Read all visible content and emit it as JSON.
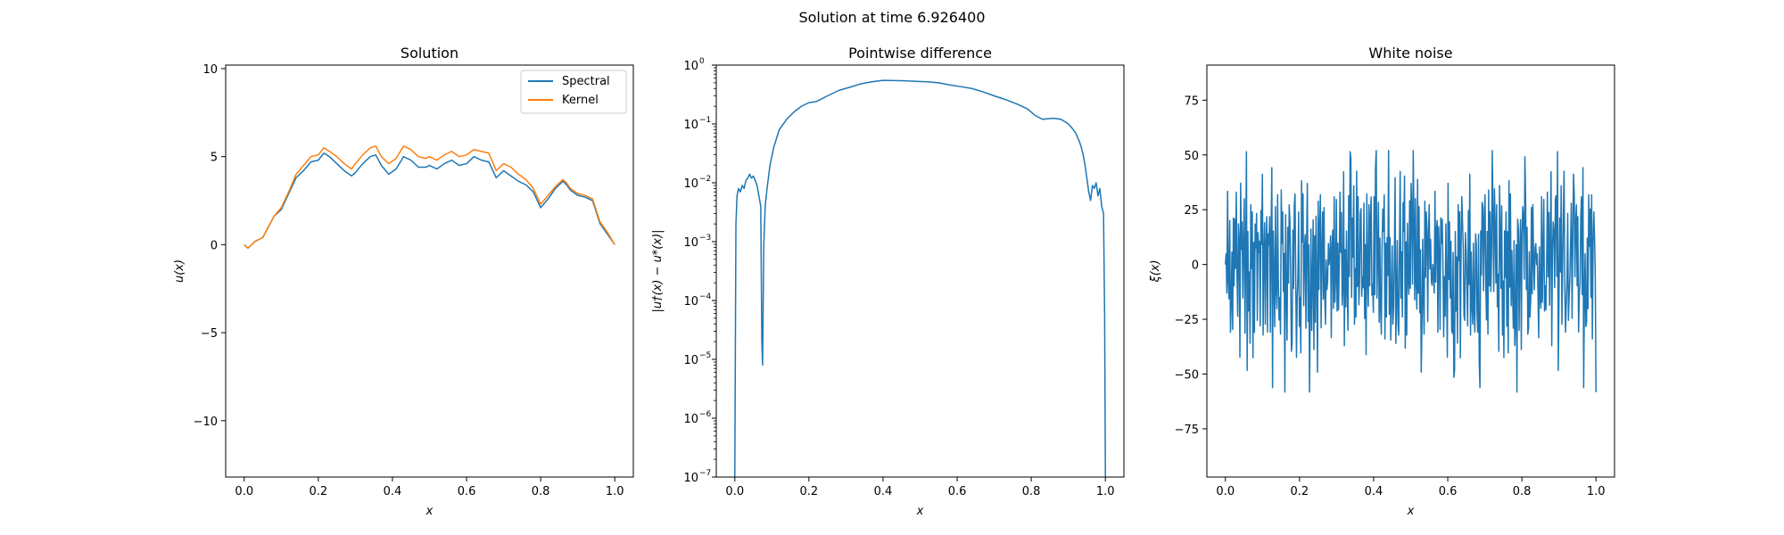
{
  "figure": {
    "suptitle": "Solution at time 6.926400"
  },
  "chart_data": [
    {
      "type": "line",
      "title": "Solution",
      "xlabel": "x",
      "ylabel": "u(x)",
      "xlim": [
        -0.05,
        1.05
      ],
      "ylim": [
        -13.2,
        10.2
      ],
      "x_ticks": [
        0.0,
        0.2,
        0.4,
        0.6,
        0.8,
        1.0
      ],
      "x_tick_labels": [
        "0.0",
        "0.2",
        "0.4",
        "0.6",
        "0.8",
        "1.0"
      ],
      "y_ticks": [
        10,
        5,
        0,
        -5,
        -10
      ],
      "y_tick_labels": [
        "10",
        "5",
        "0",
        "−5",
        "−10"
      ],
      "legend": {
        "placement": "top-right",
        "entries": [
          "Spectral",
          "Kernel"
        ]
      },
      "series": [
        {
          "name": "Spectral",
          "color": "#1f77b4",
          "x": [
            0.0,
            0.01,
            0.02,
            0.03,
            0.05,
            0.06,
            0.08,
            0.1,
            0.12,
            0.14,
            0.16,
            0.18,
            0.2,
            0.215,
            0.23,
            0.25,
            0.27,
            0.29,
            0.3,
            0.32,
            0.34,
            0.355,
            0.37,
            0.39,
            0.41,
            0.43,
            0.45,
            0.47,
            0.49,
            0.5,
            0.52,
            0.54,
            0.56,
            0.58,
            0.6,
            0.62,
            0.64,
            0.66,
            0.68,
            0.7,
            0.72,
            0.74,
            0.76,
            0.78,
            0.8,
            0.82,
            0.84,
            0.86,
            0.87,
            0.88,
            0.9,
            0.92,
            0.94,
            0.96,
            0.98,
            1.0
          ],
          "y": [
            0.0,
            -0.2,
            0.0,
            0.2,
            0.4,
            0.8,
            1.6,
            2.0,
            2.9,
            3.8,
            4.2,
            4.7,
            4.8,
            5.2,
            5.0,
            4.6,
            4.2,
            3.9,
            4.1,
            4.6,
            5.0,
            5.1,
            4.5,
            4.0,
            4.3,
            5.0,
            4.8,
            4.4,
            4.4,
            4.5,
            4.3,
            4.6,
            4.8,
            4.5,
            4.6,
            5.0,
            4.8,
            4.7,
            3.8,
            4.2,
            3.9,
            3.6,
            3.4,
            3.0,
            2.1,
            2.6,
            3.2,
            3.6,
            3.4,
            3.1,
            2.8,
            2.7,
            2.5,
            1.2,
            0.6,
            0.0
          ]
        },
        {
          "name": "Kernel",
          "color": "#ff7f0e",
          "x": [
            0.0,
            0.01,
            0.02,
            0.03,
            0.05,
            0.06,
            0.08,
            0.1,
            0.12,
            0.14,
            0.16,
            0.18,
            0.2,
            0.215,
            0.23,
            0.25,
            0.27,
            0.29,
            0.3,
            0.32,
            0.34,
            0.355,
            0.37,
            0.39,
            0.41,
            0.43,
            0.45,
            0.47,
            0.49,
            0.5,
            0.52,
            0.54,
            0.56,
            0.58,
            0.6,
            0.62,
            0.64,
            0.66,
            0.68,
            0.7,
            0.72,
            0.74,
            0.76,
            0.78,
            0.8,
            0.82,
            0.84,
            0.86,
            0.87,
            0.88,
            0.9,
            0.92,
            0.94,
            0.96,
            0.98,
            1.0
          ],
          "y": [
            0.0,
            -0.2,
            0.0,
            0.2,
            0.4,
            0.8,
            1.6,
            2.1,
            3.0,
            4.0,
            4.5,
            5.0,
            5.1,
            5.5,
            5.3,
            5.0,
            4.6,
            4.3,
            4.6,
            5.1,
            5.5,
            5.6,
            5.0,
            4.6,
            4.9,
            5.6,
            5.4,
            5.0,
            4.9,
            5.0,
            4.8,
            5.1,
            5.3,
            5.0,
            5.1,
            5.4,
            5.3,
            5.2,
            4.2,
            4.6,
            4.4,
            4.0,
            3.7,
            3.2,
            2.3,
            2.8,
            3.3,
            3.7,
            3.5,
            3.2,
            2.9,
            2.8,
            2.6,
            1.3,
            0.7,
            0.0
          ]
        }
      ]
    },
    {
      "type": "line",
      "title": "Pointwise difference",
      "xlabel": "x",
      "ylabel": "|u†(x) − u*(x)|",
      "y_scale": "log",
      "xlim": [
        -0.05,
        1.05
      ],
      "ylim": [
        1e-07,
        1
      ],
      "x_ticks": [
        0.0,
        0.2,
        0.4,
        0.6,
        0.8,
        1.0
      ],
      "x_tick_labels": [
        "0.0",
        "0.2",
        "0.4",
        "0.6",
        "0.8",
        "1.0"
      ],
      "y_ticks": [
        1,
        0.1,
        0.01,
        0.001,
        0.0001,
        1e-05,
        1e-06,
        1e-07
      ],
      "y_tick_mantissas": [
        "10",
        "10",
        "10",
        "10",
        "10",
        "10",
        "10",
        "10"
      ],
      "y_tick_exponents": [
        "0",
        "−1",
        "−2",
        "−3",
        "−4",
        "−5",
        "−6",
        "−7"
      ],
      "series": [
        {
          "color": "#1f77b4",
          "x": [
            0.0,
            0.003,
            0.006,
            0.01,
            0.015,
            0.02,
            0.025,
            0.03,
            0.035,
            0.04,
            0.045,
            0.05,
            0.055,
            0.06,
            0.065,
            0.07,
            0.073,
            0.075,
            0.078,
            0.082,
            0.087,
            0.095,
            0.105,
            0.12,
            0.14,
            0.16,
            0.18,
            0.2,
            0.22,
            0.25,
            0.28,
            0.31,
            0.34,
            0.37,
            0.4,
            0.43,
            0.46,
            0.49,
            0.52,
            0.55,
            0.58,
            0.61,
            0.64,
            0.67,
            0.7,
            0.73,
            0.76,
            0.79,
            0.81,
            0.83,
            0.86,
            0.88,
            0.9,
            0.91,
            0.92,
            0.93,
            0.935,
            0.94,
            0.945,
            0.95,
            0.955,
            0.96,
            0.965,
            0.97,
            0.975,
            0.98,
            0.985,
            0.99,
            0.995,
            0.998,
            1.0
          ],
          "y": [
            1e-07,
            0.002,
            0.006,
            0.008,
            0.007,
            0.009,
            0.008,
            0.011,
            0.012,
            0.014,
            0.012,
            0.013,
            0.011,
            0.009,
            0.006,
            0.004,
            2e-05,
            8e-06,
            0.0008,
            0.004,
            0.008,
            0.02,
            0.04,
            0.08,
            0.12,
            0.16,
            0.2,
            0.23,
            0.24,
            0.3,
            0.37,
            0.42,
            0.48,
            0.52,
            0.55,
            0.545,
            0.54,
            0.53,
            0.52,
            0.5,
            0.46,
            0.43,
            0.4,
            0.35,
            0.3,
            0.26,
            0.22,
            0.18,
            0.14,
            0.12,
            0.125,
            0.12,
            0.1,
            0.085,
            0.07,
            0.05,
            0.04,
            0.03,
            0.02,
            0.012,
            0.007,
            0.005,
            0.009,
            0.008,
            0.01,
            0.006,
            0.008,
            0.004,
            0.003,
            5e-05,
            1e-07
          ]
        }
      ]
    },
    {
      "type": "line",
      "title": "White noise",
      "xlabel": "x",
      "ylabel": "ξ(x)",
      "xlim": [
        -0.05,
        1.05
      ],
      "ylim": [
        -97,
        91
      ],
      "x_ticks": [
        0.0,
        0.2,
        0.4,
        0.6,
        0.8,
        1.0
      ],
      "x_tick_labels": [
        "0.0",
        "0.2",
        "0.4",
        "0.6",
        "0.8",
        "1.0"
      ],
      "y_ticks": [
        75,
        50,
        25,
        0,
        -25,
        -50,
        -75
      ],
      "y_tick_labels": [
        "75",
        "50",
        "25",
        "0",
        "−25",
        "−50",
        "−75"
      ],
      "series": [
        {
          "color": "#1f77b4",
          "n_points": 512,
          "y_sample": [
            0,
            5,
            -12,
            38,
            -8,
            14,
            -22,
            30,
            -15,
            6,
            -28,
            25,
            10,
            -19,
            2,
            33,
            -5,
            -26,
            18,
            -10,
            45,
            -35,
            8,
            20,
            -14,
            12,
            -30,
            28,
            -6,
            50,
            -42,
            16,
            -20,
            4,
            37,
            -25,
            -2,
            24,
            -38,
            11,
            30,
            -16,
            -8,
            22,
            -30,
            15,
            5,
            -12,
            28,
            -22,
            10,
            40,
            -28,
            6,
            -18,
            32,
            -10,
            20,
            -35,
            14,
            8,
            -24,
            30,
            -12,
            47,
            -53,
            18,
            -5,
            26,
            -30,
            12,
            -18,
            35,
            -8,
            -22,
            16,
            30,
            -40,
            10,
            22,
            -14,
            5,
            52,
            -25,
            12,
            -30,
            18,
            -8,
            32,
            -20,
            4,
            45,
            -36,
            14,
            -12,
            26,
            -28,
            8,
            40,
            -18,
            -6,
            22,
            -32,
            15,
            36,
            -42,
            10,
            28,
            -20,
            6,
            -16,
            30,
            -10,
            42,
            -26,
            8,
            -64,
            20,
            -14,
            32,
            -8,
            24,
            -40,
            12,
            30,
            -22,
            6,
            -54,
            28,
            -10,
            18,
            -30,
            34,
            -6,
            22,
            -18,
            26,
            -12,
            30,
            -2,
            10,
            -8,
            9
          ]
        }
      ]
    }
  ]
}
